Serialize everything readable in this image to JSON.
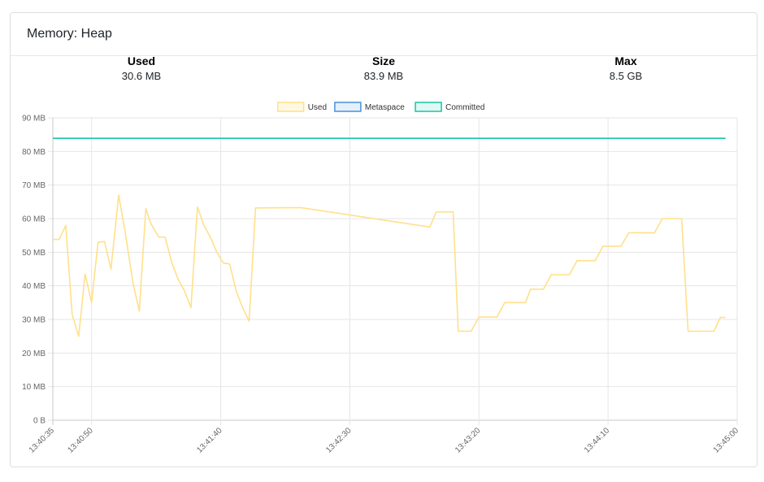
{
  "card": {
    "title": "Memory: Heap"
  },
  "stats": [
    {
      "label": "Used",
      "value": "30.6 MB"
    },
    {
      "label": "Size",
      "value": "83.9 MB"
    },
    {
      "label": "Max",
      "value": "8.5 GB"
    }
  ],
  "chart_data": {
    "type": "line",
    "legend_position": "top",
    "grid": true,
    "ylim": [
      0,
      90
    ],
    "y_ticks": [
      "0 B",
      "10 MB",
      "20 MB",
      "30 MB",
      "40 MB",
      "50 MB",
      "60 MB",
      "70 MB",
      "80 MB",
      "90 MB"
    ],
    "x_ticks": [
      "13:40:35",
      "13:40:50",
      "13:41:40",
      "13:42:30",
      "13:43:20",
      "13:44:10",
      "13:45:00"
    ],
    "x_tick_seconds": [
      0,
      15,
      65,
      115,
      165,
      215,
      265
    ],
    "series": [
      {
        "name": "Used",
        "color": "#ffe08a",
        "fill": "#fff8e1",
        "points": [
          [
            0,
            53.8
          ],
          [
            2.5,
            53.8
          ],
          [
            5,
            58
          ],
          [
            7.5,
            31.5
          ],
          [
            10,
            25
          ],
          [
            12.5,
            43.5
          ],
          [
            15,
            35
          ],
          [
            17.5,
            53
          ],
          [
            20,
            53.2
          ],
          [
            22.5,
            45
          ],
          [
            25.5,
            67
          ],
          [
            28,
            56
          ],
          [
            31,
            41
          ],
          [
            33.5,
            32.5
          ],
          [
            36,
            63
          ],
          [
            38,
            58.5
          ],
          [
            41,
            54.5
          ],
          [
            43.5,
            54.5
          ],
          [
            46,
            47
          ],
          [
            48.5,
            42
          ],
          [
            51,
            38.5
          ],
          [
            53.5,
            33.5
          ],
          [
            56,
            63.5
          ],
          [
            58.5,
            58
          ],
          [
            61,
            54.5
          ],
          [
            63.5,
            50
          ],
          [
            66,
            46.8
          ],
          [
            68.5,
            46.5
          ],
          [
            71,
            38.5
          ],
          [
            73.5,
            33.5
          ],
          [
            76,
            29.5
          ],
          [
            78.5,
            63.2
          ],
          [
            96,
            63.3
          ],
          [
            146,
            57.5
          ],
          [
            148.5,
            62
          ],
          [
            155,
            62
          ],
          [
            157,
            26.5
          ],
          [
            162,
            26.5
          ],
          [
            165,
            30.7
          ],
          [
            172,
            30.7
          ],
          [
            175,
            35
          ],
          [
            183,
            35
          ],
          [
            185,
            39
          ],
          [
            190,
            39
          ],
          [
            193,
            43.3
          ],
          [
            200,
            43.3
          ],
          [
            203,
            47.5
          ],
          [
            210,
            47.5
          ],
          [
            213,
            51.8
          ],
          [
            220,
            51.8
          ],
          [
            223,
            55.8
          ],
          [
            233,
            55.8
          ],
          [
            236,
            60
          ],
          [
            243.5,
            60
          ],
          [
            246,
            26.5
          ],
          [
            256,
            26.5
          ],
          [
            258.5,
            30.6
          ],
          [
            260.5,
            30.6
          ]
        ]
      },
      {
        "name": "Metaspace",
        "color": "#4a90d9",
        "fill": "#e3f0fb",
        "points": []
      },
      {
        "name": "Committed",
        "color": "#19c4a8",
        "fill": "#e0f7f3",
        "points": [
          [
            0,
            83.9
          ],
          [
            260.5,
            83.9
          ]
        ]
      }
    ]
  }
}
